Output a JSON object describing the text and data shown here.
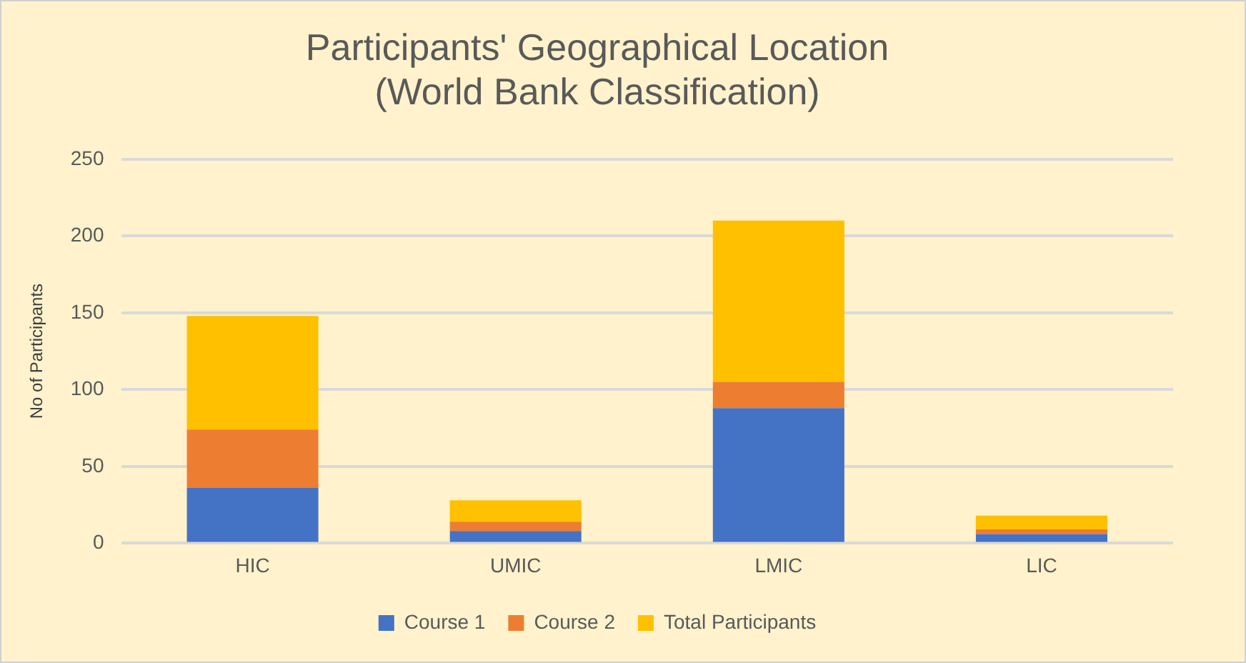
{
  "chart_data": {
    "type": "bar",
    "title": "Participants' Geographical Location\n(World Bank Classification)",
    "ylabel": "No of Participants",
    "categories": [
      "HIC",
      "UMIC",
      "LMIC",
      "LIC"
    ],
    "series": [
      {
        "name": "Course 1",
        "color": "#4472c4",
        "values": [
          36,
          8,
          88,
          6
        ]
      },
      {
        "name": "Course 2",
        "color": "#ed7d31",
        "values": [
          38,
          6,
          17,
          3
        ]
      },
      {
        "name": "Total Participants",
        "color": "#ffc000",
        "values": [
          74,
          14,
          105,
          9
        ]
      }
    ],
    "stacked": true,
    "ylim": [
      0,
      250
    ],
    "yticks": [
      0,
      50,
      100,
      150,
      200,
      250
    ],
    "grid": "y",
    "legend": "bottom"
  }
}
